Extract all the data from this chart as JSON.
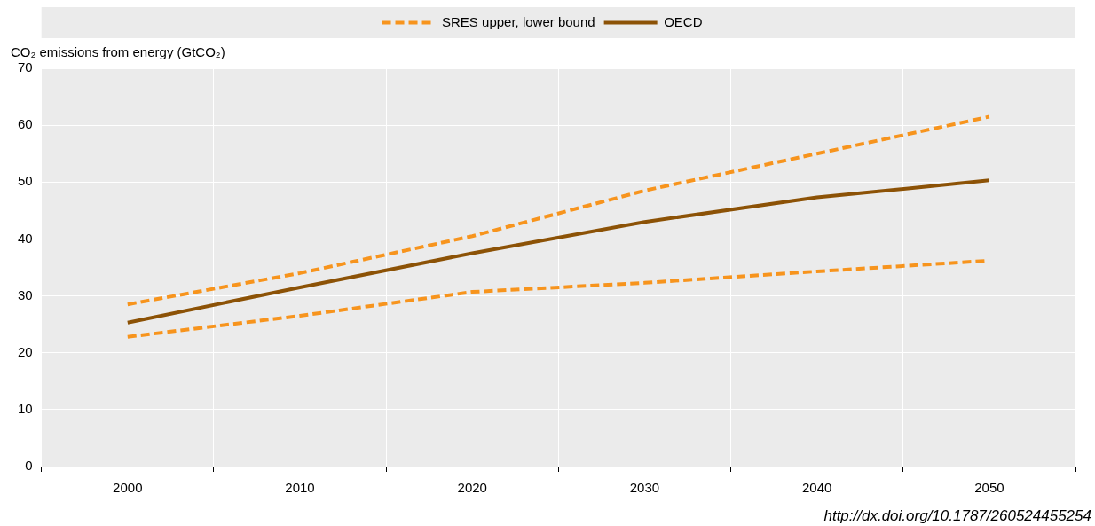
{
  "chart_data": {
    "type": "line",
    "ylabel": "CO₂ emissions from energy (GtCO₂)",
    "categories": [
      "2000",
      "2010",
      "2020",
      "2030",
      "2040",
      "2050"
    ],
    "series": [
      {
        "name": "SRES upper, lower bound",
        "color": "#f7941d",
        "line_style": "dashed",
        "values": [
          28.5,
          34,
          40.5,
          48.5,
          55,
          61.5
        ]
      },
      {
        "color": "#f7941d",
        "line_style": "dashed",
        "values": [
          22.8,
          26.5,
          30.7,
          32.3,
          34.3,
          36.2
        ]
      },
      {
        "name": "OECD",
        "color": "#8c5206",
        "line_style": "solid",
        "values": [
          25.3,
          31.5,
          37.5,
          43,
          47.3,
          50.3
        ]
      }
    ],
    "ylim": [
      0,
      70
    ],
    "yticks": [
      0,
      10,
      20,
      30,
      40,
      50,
      60,
      70
    ],
    "grid": true,
    "legend": "top",
    "marker": "none",
    "annotations": [
      "http://dx.doi.org/10.1787/260524455254"
    ]
  }
}
